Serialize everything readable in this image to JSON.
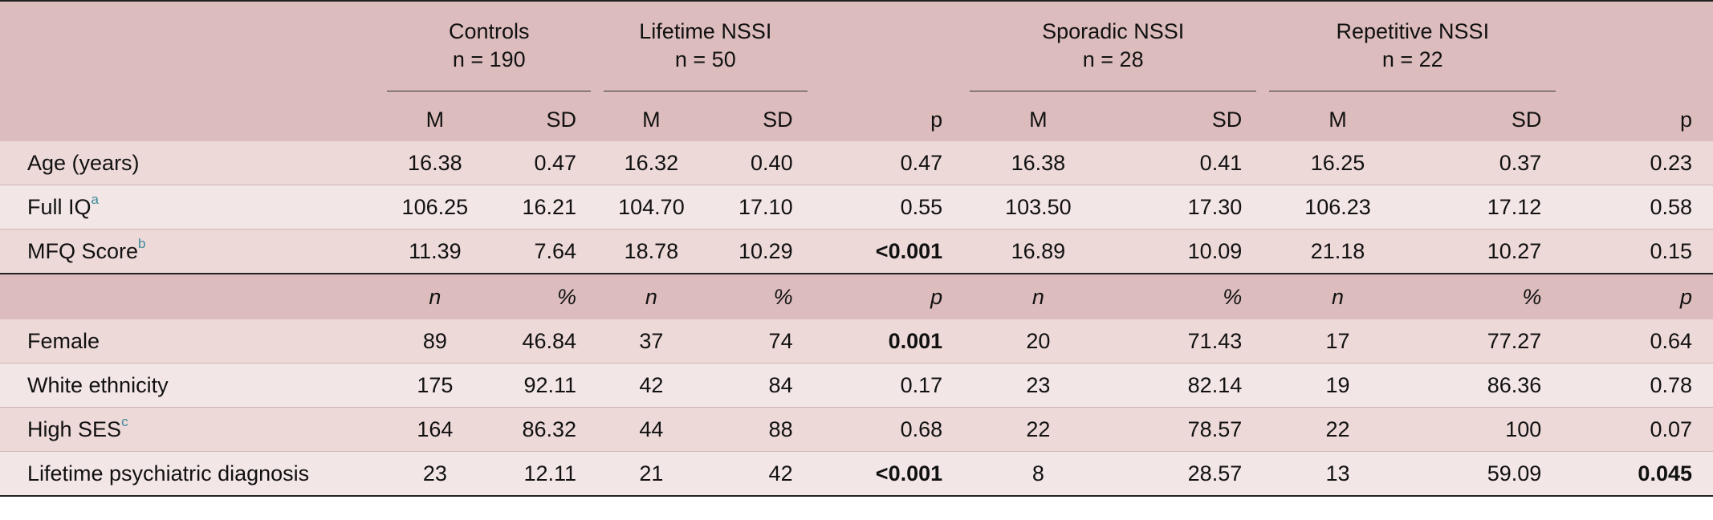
{
  "groups": [
    {
      "name": "Controls",
      "n": "n = 190"
    },
    {
      "name": "Lifetime NSSI",
      "n": "n = 50"
    },
    {
      "name": "Sporadic NSSI",
      "n": "n = 28"
    },
    {
      "name": "Repetitive NSSI",
      "n": "n = 22"
    }
  ],
  "sub1": {
    "m": "M",
    "sd": "SD",
    "p": "p"
  },
  "sub2": {
    "n": "n",
    "pct": "%",
    "p": "p"
  },
  "rows1": [
    {
      "label": "Age (years)",
      "sup": "",
      "vals": [
        "16.38",
        "0.47",
        "16.32",
        "0.40",
        "0.47",
        "16.38",
        "0.41",
        "16.25",
        "0.37",
        "0.23"
      ]
    },
    {
      "label": "Full IQ",
      "sup": "a",
      "vals": [
        "106.25",
        "16.21",
        "104.70",
        "17.10",
        "0.55",
        "103.50",
        "17.30",
        "106.23",
        "17.12",
        "0.58"
      ]
    },
    {
      "label": "MFQ Score",
      "sup": "b",
      "vals": [
        "11.39",
        "7.64",
        "18.78",
        "10.29",
        "<0.001",
        "16.89",
        "10.09",
        "21.18",
        "10.27",
        "0.15"
      ]
    }
  ],
  "rows2": [
    {
      "label": "Female",
      "sup": "",
      "vals": [
        "89",
        "46.84",
        "37",
        "74",
        "0.001",
        "20",
        "71.43",
        "17",
        "77.27",
        "0.64"
      ]
    },
    {
      "label": "White ethnicity",
      "sup": "",
      "vals": [
        "175",
        "92.11",
        "42",
        "84",
        "0.17",
        "23",
        "82.14",
        "19",
        "86.36",
        "0.78"
      ]
    },
    {
      "label": "High SES",
      "sup": "c",
      "vals": [
        "164",
        "86.32",
        "44",
        "88",
        "0.68",
        "22",
        "78.57",
        "22",
        "100",
        "0.07"
      ]
    },
    {
      "label": "Lifetime psychiatric diagnosis",
      "sup": "",
      "vals": [
        "23",
        "12.11",
        "21",
        "42",
        "<0.001",
        "8",
        "28.57",
        "13",
        "59.09",
        "0.045"
      ]
    }
  ]
}
